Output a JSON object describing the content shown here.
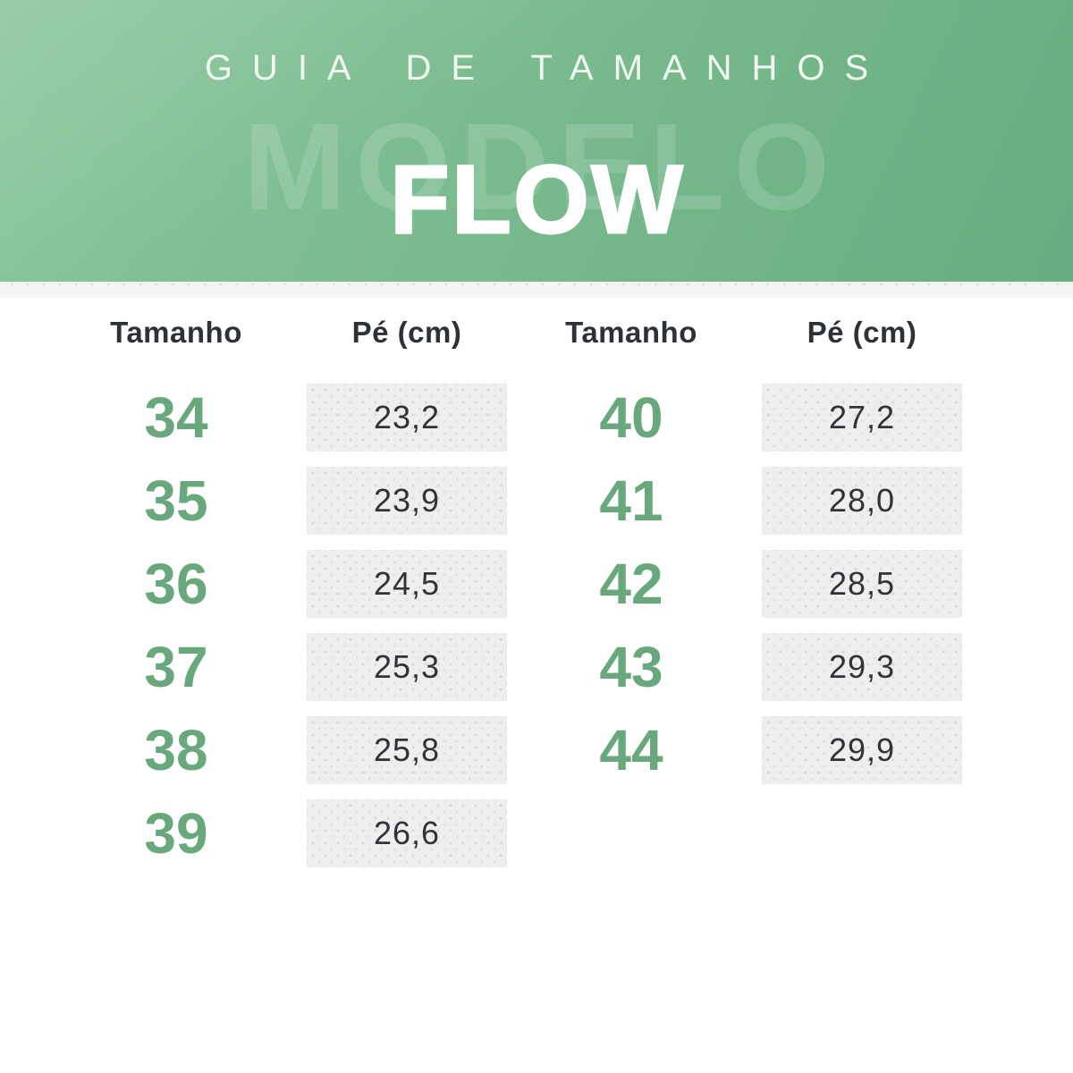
{
  "header": {
    "title": "GUIA DE TAMANHOS",
    "watermark": "MODELO",
    "model_name": "FLOW"
  },
  "table": {
    "columns": [
      {
        "size_label": "Tamanho",
        "foot_label": "Pé (cm)",
        "rows": [
          {
            "size": "34",
            "foot": "23,2"
          },
          {
            "size": "35",
            "foot": "23,9"
          },
          {
            "size": "36",
            "foot": "24,5"
          },
          {
            "size": "37",
            "foot": "25,3"
          },
          {
            "size": "38",
            "foot": "25,8"
          },
          {
            "size": "39",
            "foot": "26,6"
          }
        ]
      },
      {
        "size_label": "Tamanho",
        "foot_label": "Pé (cm)",
        "rows": [
          {
            "size": "40",
            "foot": "27,2"
          },
          {
            "size": "41",
            "foot": "28,0"
          },
          {
            "size": "42",
            "foot": "28,5"
          },
          {
            "size": "43",
            "foot": "29,3"
          },
          {
            "size": "44",
            "foot": "29,9"
          }
        ]
      }
    ]
  },
  "colors": {
    "banner_gradient_start": "#8ac69c",
    "banner_gradient_end": "#66ae81",
    "accent_green": "#69a87d",
    "box_background": "#efeeee",
    "text_dark": "#2d3237",
    "divider": "#f3f5f4",
    "banner_text": "#ffffff"
  }
}
